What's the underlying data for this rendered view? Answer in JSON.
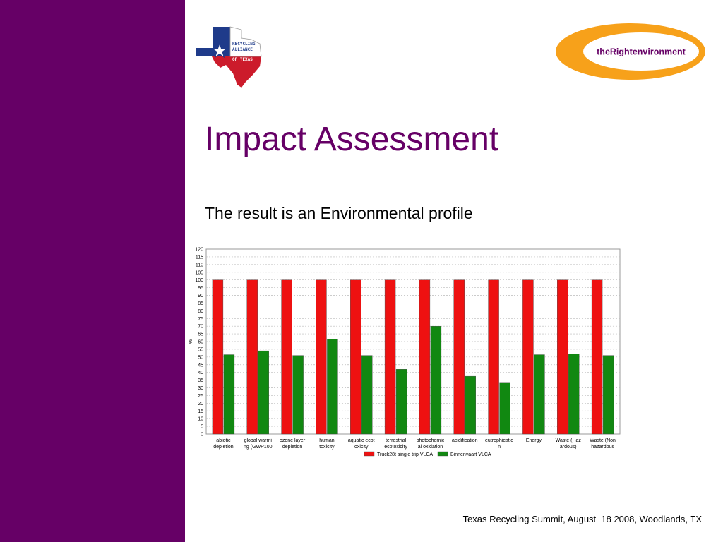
{
  "slide": {
    "title": "Impact Assessment",
    "subtitle": "The result is an Environmental profile",
    "footer": "Texas Recycling Summit, August  18 2008, Woodlands, TX",
    "accent_color": "#660066"
  },
  "logos": {
    "left": {
      "icon": "recycling-alliance-of-texas-logo",
      "lines": [
        "RECYCLING",
        "ALLIANCE",
        "OF TEXAS"
      ]
    },
    "right": {
      "icon": "the-right-environment-logo",
      "text": "theRightenvironment",
      "color": "#f7a11a",
      "text_color": "#660066"
    }
  },
  "chart_data": {
    "type": "bar",
    "ylabel": "%",
    "ylim": [
      0,
      120
    ],
    "yticks": [
      0,
      5,
      10,
      15,
      20,
      25,
      30,
      35,
      40,
      45,
      50,
      55,
      60,
      65,
      70,
      75,
      80,
      85,
      90,
      95,
      100,
      105,
      110,
      115,
      120
    ],
    "grid": true,
    "legend_position": "bottom",
    "categories": [
      [
        "abiotic",
        "depletion"
      ],
      [
        "global warmi",
        "ng (GWP100"
      ],
      [
        "ozone layer",
        "depletion"
      ],
      [
        "human",
        "toxicity"
      ],
      [
        "aquatic ecot",
        "oxicity"
      ],
      [
        "terrestrial",
        "ecotoxicity"
      ],
      [
        "photochemic",
        "al oxidation"
      ],
      [
        "acidification"
      ],
      [
        "eutrophicatio",
        "n"
      ],
      [
        "Energy"
      ],
      [
        "Waste (Haz",
        "ardous)"
      ],
      [
        "Waste (Non",
        "hazardous"
      ]
    ],
    "series": [
      {
        "name": "Truck28t single trip VLCA",
        "color": "#ee1111",
        "values": [
          100,
          100,
          100,
          100,
          100,
          100,
          100,
          100,
          100,
          100,
          100,
          100
        ]
      },
      {
        "name": "Binnenvaart VLCA",
        "color": "#118811",
        "values": [
          51.5,
          54,
          51,
          61.5,
          51,
          42,
          70,
          37.5,
          33.5,
          51.5,
          52,
          51
        ]
      }
    ]
  }
}
